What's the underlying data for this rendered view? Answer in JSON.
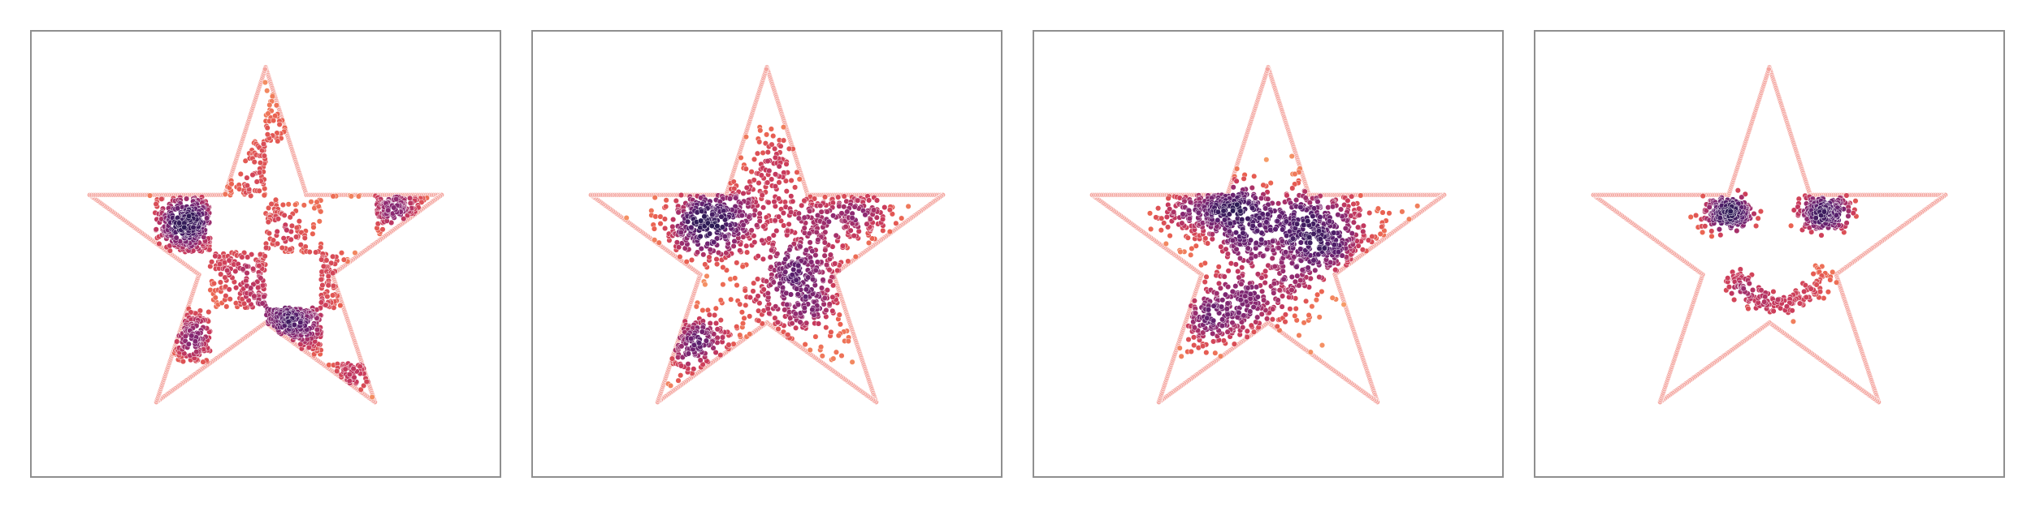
{
  "figure": {
    "panel_count": 4,
    "outline_color": "#f4a6a0",
    "colormap": [
      "#fcd3a0",
      "#f7a06a",
      "#ea6151",
      "#c93a5c",
      "#8f2a72",
      "#5a1f6e",
      "#2c1a55"
    ],
    "frame_color": "#8f8f8f",
    "axes_ticks_shown": false
  },
  "chart_data": [
    {
      "type": "scatter",
      "title": "",
      "xlabel": "",
      "ylabel": "",
      "xlim": [
        -1.2,
        1.2
      ],
      "ylim": [
        -1.2,
        1.2
      ],
      "grid": false,
      "legend": "none",
      "outline": "star",
      "star_vertices": [
        [
          0.0,
          1.0
        ],
        [
          0.22,
          0.31
        ],
        [
          0.95,
          0.31
        ],
        [
          0.36,
          -0.12
        ],
        [
          0.59,
          -0.81
        ],
        [
          0.0,
          -0.38
        ],
        [
          -0.59,
          -0.81
        ],
        [
          -0.36,
          -0.12
        ],
        [
          -0.95,
          0.31
        ],
        [
          -0.22,
          0.31
        ]
      ],
      "distribution": "checkerboard",
      "clusters": [
        {
          "cx": -0.35,
          "cy": 0.15,
          "sx": 0.2,
          "sy": 0.14,
          "n": 420
        },
        {
          "cx": 0.15,
          "cy": -0.28,
          "sx": 0.18,
          "sy": 0.18,
          "n": 460
        },
        {
          "cx": 0.6,
          "cy": 0.25,
          "sx": 0.18,
          "sy": 0.06,
          "n": 150
        },
        {
          "cx": 0.02,
          "cy": 0.55,
          "sx": 0.07,
          "sy": 0.22,
          "n": 110
        },
        {
          "cx": -0.45,
          "cy": -0.5,
          "sx": 0.14,
          "sy": 0.12,
          "n": 130
        },
        {
          "cx": 0.45,
          "cy": -0.55,
          "sx": 0.08,
          "sy": 0.14,
          "n": 70
        }
      ]
    },
    {
      "type": "scatter",
      "title": "",
      "xlabel": "",
      "ylabel": "",
      "xlim": [
        -1.2,
        1.2
      ],
      "ylim": [
        -1.2,
        1.2
      ],
      "grid": false,
      "legend": "none",
      "outline": "star",
      "star_vertices": [
        [
          0.0,
          1.0
        ],
        [
          0.22,
          0.31
        ],
        [
          0.95,
          0.31
        ],
        [
          0.36,
          -0.12
        ],
        [
          0.59,
          -0.81
        ],
        [
          0.0,
          -0.38
        ],
        [
          -0.59,
          -0.81
        ],
        [
          -0.36,
          -0.12
        ],
        [
          -0.95,
          0.31
        ],
        [
          -0.22,
          0.31
        ]
      ],
      "distribution": "transition",
      "clusters": [
        {
          "cx": -0.28,
          "cy": 0.18,
          "sx": 0.18,
          "sy": 0.12,
          "n": 380
        },
        {
          "cx": 0.2,
          "cy": -0.2,
          "sx": 0.18,
          "sy": 0.17,
          "n": 420
        },
        {
          "cx": 0.45,
          "cy": 0.22,
          "sx": 0.18,
          "sy": 0.08,
          "n": 170
        },
        {
          "cx": 0.02,
          "cy": 0.42,
          "sx": 0.1,
          "sy": 0.14,
          "n": 110
        },
        {
          "cx": -0.42,
          "cy": -0.5,
          "sx": 0.16,
          "sy": 0.12,
          "n": 160
        }
      ]
    },
    {
      "type": "scatter",
      "title": "",
      "xlabel": "",
      "ylabel": "",
      "xlim": [
        -1.2,
        1.2
      ],
      "ylim": [
        -1.2,
        1.2
      ],
      "grid": false,
      "legend": "none",
      "outline": "star",
      "star_vertices": [
        [
          0.0,
          1.0
        ],
        [
          0.22,
          0.31
        ],
        [
          0.95,
          0.31
        ],
        [
          0.36,
          -0.12
        ],
        [
          0.59,
          -0.81
        ],
        [
          0.0,
          -0.38
        ],
        [
          -0.59,
          -0.81
        ],
        [
          -0.36,
          -0.12
        ],
        [
          -0.95,
          0.31
        ],
        [
          -0.22,
          0.31
        ]
      ],
      "distribution": "transition",
      "clusters": [
        {
          "cx": -0.28,
          "cy": 0.22,
          "sx": 0.14,
          "sy": 0.1,
          "n": 320
        },
        {
          "cx": 0.3,
          "cy": 0.12,
          "sx": 0.18,
          "sy": 0.13,
          "n": 360
        },
        {
          "cx": 0.05,
          "cy": -0.05,
          "sx": 0.18,
          "sy": 0.2,
          "n": 330
        },
        {
          "cx": -0.3,
          "cy": -0.35,
          "sx": 0.2,
          "sy": 0.1,
          "n": 220
        }
      ]
    },
    {
      "type": "scatter",
      "title": "",
      "xlabel": "",
      "ylabel": "",
      "xlim": [
        -1.2,
        1.2
      ],
      "ylim": [
        -1.2,
        1.2
      ],
      "grid": false,
      "legend": "none",
      "outline": "star",
      "star_vertices": [
        [
          0.0,
          1.0
        ],
        [
          0.22,
          0.31
        ],
        [
          0.95,
          0.31
        ],
        [
          0.36,
          -0.12
        ],
        [
          0.59,
          -0.81
        ],
        [
          0.0,
          -0.38
        ],
        [
          -0.59,
          -0.81
        ],
        [
          -0.36,
          -0.12
        ],
        [
          -0.95,
          0.31
        ],
        [
          -0.22,
          0.31
        ]
      ],
      "distribution": "smiley",
      "clusters": [
        {
          "cx": -0.22,
          "cy": 0.22,
          "sx": 0.07,
          "sy": 0.05,
          "n": 190
        },
        {
          "cx": 0.3,
          "cy": 0.22,
          "sx": 0.07,
          "sy": 0.05,
          "n": 190
        }
      ],
      "arc": {
        "cx": 0.05,
        "cy": -0.02,
        "r": 0.26,
        "start_deg": 200,
        "end_deg": 345,
        "sd": 0.03,
        "n": 170
      }
    }
  ]
}
